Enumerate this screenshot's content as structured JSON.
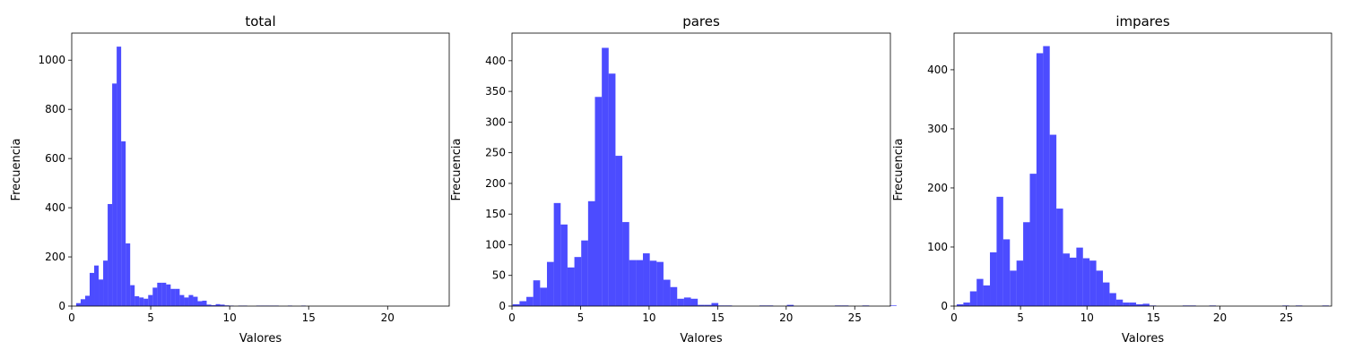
{
  "chart_data": [
    {
      "type": "bar",
      "title": "total",
      "xlabel": "Valores",
      "ylabel": "Frecuencia",
      "xlim": [
        0,
        23.9
      ],
      "ylim": [
        0,
        1110
      ],
      "xticks": [
        0,
        5,
        10,
        15,
        20
      ],
      "yticks": [
        0,
        200,
        400,
        600,
        800,
        1000
      ],
      "bar_color": "#0000ff",
      "bar_opacity": 0.7,
      "bin_width": 0.285,
      "bin_start": 0.28,
      "values": [
        12,
        28,
        42,
        135,
        165,
        108,
        185,
        415,
        905,
        1055,
        670,
        255,
        85,
        40,
        35,
        30,
        45,
        75,
        95,
        95,
        88,
        70,
        70,
        45,
        35,
        45,
        38,
        20,
        22,
        6,
        4,
        8,
        6,
        3,
        2,
        0,
        2,
        2,
        0,
        0,
        2,
        2,
        2,
        2,
        2,
        0,
        0,
        2,
        0,
        0,
        2,
        0,
        0,
        0,
        0,
        0,
        0,
        0,
        0,
        0,
        0,
        0,
        0,
        0,
        0,
        0,
        0,
        0,
        0,
        0,
        0,
        0,
        0,
        0,
        0,
        0,
        0,
        0
      ]
    },
    {
      "type": "bar",
      "title": "pares",
      "xlabel": "Valores",
      "ylabel": "Frecuencia",
      "xlim": [
        0,
        27.6
      ],
      "ylim": [
        0,
        445
      ],
      "xticks": [
        0,
        5,
        10,
        15,
        20,
        25
      ],
      "yticks": [
        0,
        50,
        100,
        150,
        200,
        250,
        300,
        350,
        400
      ],
      "bar_color": "#0000ff",
      "bar_opacity": 0.7,
      "bin_width": 0.5,
      "bin_start": 0.05,
      "values": [
        3,
        8,
        15,
        42,
        30,
        72,
        168,
        133,
        63,
        80,
        107,
        171,
        341,
        421,
        379,
        245,
        137,
        75,
        75,
        86,
        74,
        72,
        43,
        31,
        12,
        14,
        12,
        2,
        2,
        5,
        1,
        1,
        0,
        0,
        0,
        0,
        1,
        1,
        0,
        0,
        2,
        0,
        0,
        0,
        0,
        0,
        0,
        1,
        1,
        0,
        0,
        1,
        0,
        0,
        0,
        1
      ]
    },
    {
      "type": "bar",
      "title": "impares",
      "xlabel": "Valores",
      "ylabel": "Frecuencia",
      "xlim": [
        0,
        28.4
      ],
      "ylim": [
        0,
        462
      ],
      "xticks": [
        0,
        5,
        10,
        15,
        20,
        25
      ],
      "yticks": [
        0,
        100,
        200,
        300,
        400
      ],
      "bar_color": "#0000ff",
      "bar_opacity": 0.7,
      "bin_width": 0.5,
      "bin_start": 0.2,
      "values": [
        3,
        6,
        25,
        46,
        35,
        91,
        185,
        113,
        60,
        77,
        142,
        224,
        428,
        440,
        290,
        165,
        89,
        82,
        99,
        81,
        77,
        60,
        40,
        22,
        11,
        6,
        6,
        3,
        4,
        1,
        0,
        0,
        0,
        0,
        1,
        1,
        0,
        0,
        1,
        0,
        0,
        0,
        0,
        0,
        0,
        0,
        0,
        0,
        0,
        1,
        0,
        1,
        0,
        0,
        0,
        1
      ]
    }
  ]
}
